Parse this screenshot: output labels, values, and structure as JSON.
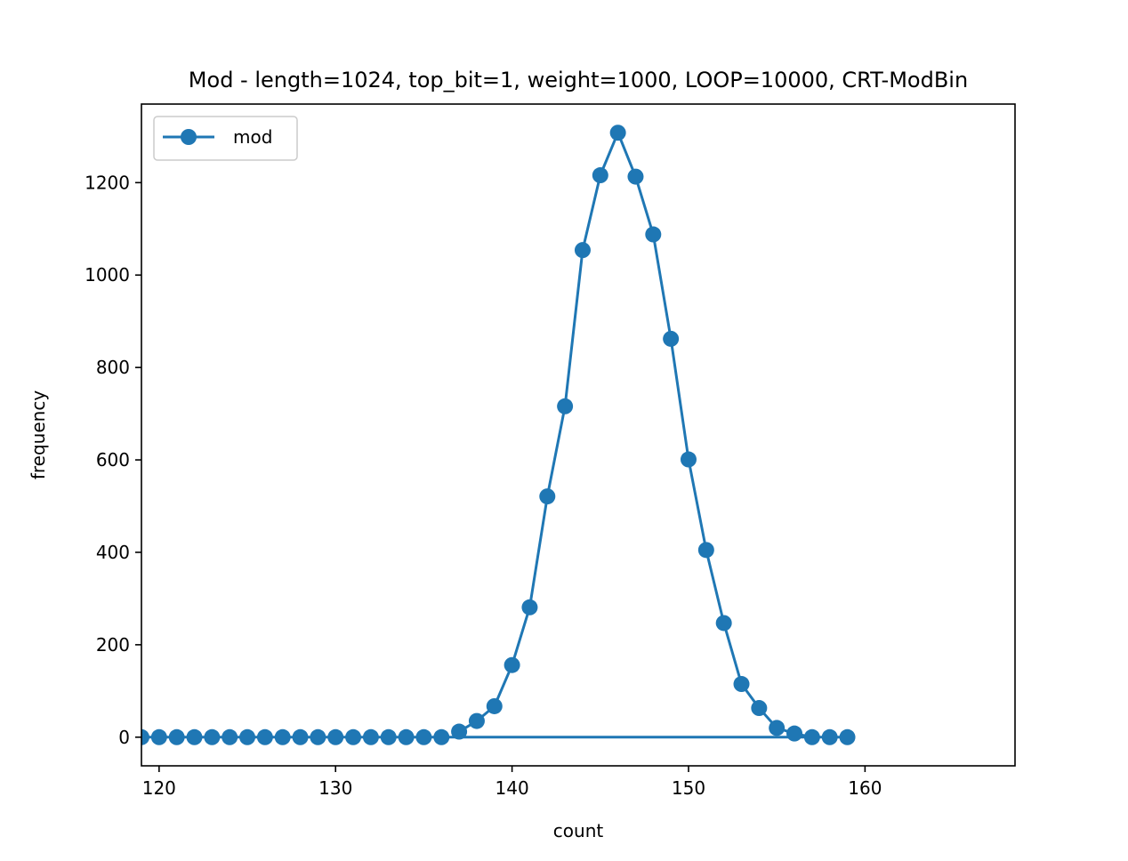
{
  "chart_data": {
    "type": "line",
    "title": "Mod - length=1024, top_bit=1, weight=1000, LOOP=10000, CRT-ModBin",
    "xlabel": "count",
    "ylabel": "frequency",
    "xlim": [
      119,
      168.5
    ],
    "ylim": [
      -62,
      1370
    ],
    "xticks": [
      120,
      130,
      140,
      150,
      160
    ],
    "yticks": [
      0,
      200,
      400,
      600,
      800,
      1000,
      1200
    ],
    "grid": false,
    "legend_position": "top-left",
    "series": [
      {
        "name": "mod",
        "color": "#1f77b4",
        "marker": "circle",
        "x": [
          137,
          138,
          139,
          140,
          141,
          142,
          143,
          144,
          145,
          146,
          147,
          148,
          149,
          150,
          151,
          152,
          153,
          154,
          155,
          156,
          157,
          158,
          159,
          119,
          120,
          121,
          122,
          123,
          124,
          125,
          126,
          127,
          128,
          129,
          130,
          131,
          132,
          133,
          134,
          135,
          136
        ],
        "y": [
          12,
          35,
          67,
          156,
          281,
          521,
          716,
          1054,
          1216,
          1308,
          1213,
          1088,
          862,
          601,
          405,
          247,
          115,
          63,
          20,
          8,
          0,
          0,
          0,
          0,
          0,
          0,
          0,
          0,
          0,
          0,
          0,
          0,
          0,
          0,
          0,
          0,
          0,
          0,
          0,
          0,
          0
        ]
      }
    ]
  }
}
